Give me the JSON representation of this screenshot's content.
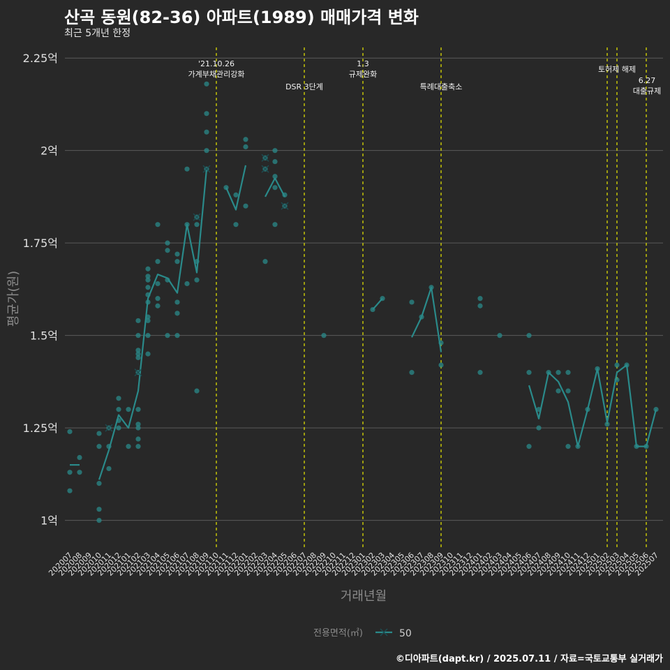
{
  "title": "산곡 동원(82-36) 아파트(1989) 매매가격 변화",
  "subtitle": "최근 5개년 한정",
  "credit": "©디아파트(dapt.kr) / 2025.07.11 / 자료=국토교통부 실거래가",
  "colors": {
    "background": "#282828",
    "series": "#2a8a8a",
    "event_line": "#e8e800",
    "grid": "#5a5a5a",
    "axis_text": "#e0e0e0",
    "axis_title": "#8a8a8a"
  },
  "chart_data": {
    "type": "line",
    "xlabel": "거래년월",
    "ylabel": "평균가(원)",
    "y_unit": "억",
    "ylim": [
      0.92,
      2.29
    ],
    "y_ticks": [
      {
        "value": 1.0,
        "label": "1억"
      },
      {
        "value": 1.25,
        "label": "1.25억"
      },
      {
        "value": 1.5,
        "label": "1.5억"
      },
      {
        "value": 1.75,
        "label": "1.75억"
      },
      {
        "value": 2.0,
        "label": "2억"
      },
      {
        "value": 2.25,
        "label": "2.25억"
      }
    ],
    "months": [
      "202007",
      "202008",
      "202009",
      "202010",
      "202011",
      "202012",
      "202101",
      "202102",
      "202103",
      "202104",
      "202105",
      "202106",
      "202107",
      "202108",
      "202109",
      "202110",
      "202111",
      "202112",
      "202201",
      "202202",
      "202203",
      "202204",
      "202205",
      "202206",
      "202207",
      "202208",
      "202209",
      "202210",
      "202211",
      "202212",
      "202301",
      "202302",
      "202303",
      "202304",
      "202305",
      "202306",
      "202307",
      "202308",
      "202309",
      "202310",
      "202311",
      "202312",
      "202401",
      "202402",
      "202403",
      "202404",
      "202405",
      "202406",
      "202407",
      "202408",
      "202409",
      "202410",
      "202411",
      "202412",
      "202501",
      "202502",
      "202503",
      "202504",
      "202505",
      "202506",
      "202507"
    ],
    "legend": {
      "title": "전용면적(㎡)",
      "entries": [
        "50"
      ],
      "position": "bottom"
    },
    "grid": true,
    "series": [
      {
        "name": "50",
        "mean_line_segments": [
          [
            [
              "202007",
              1.15
            ],
            [
              "202008",
              1.15
            ]
          ],
          [
            [
              "202010",
              1.11
            ],
            [
              "202011",
              1.19
            ],
            [
              "202012",
              1.285
            ],
            [
              "202101",
              1.25
            ],
            [
              "202102",
              1.35
            ],
            [
              "202103",
              1.6
            ],
            [
              "202104",
              1.665
            ],
            [
              "202105",
              1.655
            ],
            [
              "202106",
              1.615
            ],
            [
              "202107",
              1.8
            ],
            [
              "202108",
              1.67
            ],
            [
              "202109",
              1.95
            ]
          ],
          [
            [
              "202111",
              1.9
            ],
            [
              "202112",
              1.84
            ],
            [
              "202201",
              1.96
            ]
          ],
          [
            [
              "202203",
              1.875
            ],
            [
              "202204",
              1.925
            ],
            [
              "202205",
              1.875
            ]
          ],
          [
            [
              "202302",
              1.57
            ],
            [
              "202303",
              1.6
            ]
          ],
          [
            [
              "202306",
              1.495
            ],
            [
              "202307",
              1.55
            ],
            [
              "202308",
              1.63
            ],
            [
              "202309",
              1.455
            ]
          ],
          [
            [
              "202406",
              1.365
            ],
            [
              "202407",
              1.275
            ],
            [
              "202408",
              1.4
            ],
            [
              "202409",
              1.375
            ],
            [
              "202410",
              1.32
            ],
            [
              "202411",
              1.2
            ],
            [
              "202412",
              1.3
            ],
            [
              "202501",
              1.41
            ],
            [
              "202502",
              1.265
            ],
            [
              "202503",
              1.4
            ],
            [
              "202504",
              1.42
            ],
            [
              "202505",
              1.2
            ],
            [
              "202506",
              1.2
            ],
            [
              "202507",
              1.3
            ]
          ]
        ],
        "transactions": [
          [
            "202007",
            1.24
          ],
          [
            "202007",
            1.13
          ],
          [
            "202007",
            1.08
          ],
          [
            "202008",
            1.17
          ],
          [
            "202008",
            1.13
          ],
          [
            "202010",
            1.235
          ],
          [
            "202010",
            1.2
          ],
          [
            "202010",
            1.1
          ],
          [
            "202010",
            1.03
          ],
          [
            "202010",
            1.0
          ],
          [
            "202011",
            1.25
          ],
          [
            "202011",
            1.2
          ],
          [
            "202011",
            1.14
          ],
          [
            "202012",
            1.33
          ],
          [
            "202012",
            1.3
          ],
          [
            "202012",
            1.27
          ],
          [
            "202012",
            1.25
          ],
          [
            "202101",
            1.3
          ],
          [
            "202101",
            1.2
          ],
          [
            "202102",
            1.54
          ],
          [
            "202102",
            1.5
          ],
          [
            "202102",
            1.46
          ],
          [
            "202102",
            1.45
          ],
          [
            "202102",
            1.44
          ],
          [
            "202102",
            1.4
          ],
          [
            "202102",
            1.3
          ],
          [
            "202102",
            1.26
          ],
          [
            "202102",
            1.25
          ],
          [
            "202102",
            1.22
          ],
          [
            "202102",
            1.2
          ],
          [
            "202103",
            1.68
          ],
          [
            "202103",
            1.66
          ],
          [
            "202103",
            1.65
          ],
          [
            "202103",
            1.63
          ],
          [
            "202103",
            1.61
          ],
          [
            "202103",
            1.59
          ],
          [
            "202103",
            1.55
          ],
          [
            "202103",
            1.54
          ],
          [
            "202103",
            1.5
          ],
          [
            "202103",
            1.45
          ],
          [
            "202104",
            1.8
          ],
          [
            "202104",
            1.7
          ],
          [
            "202104",
            1.64
          ],
          [
            "202104",
            1.6
          ],
          [
            "202104",
            1.58
          ],
          [
            "202105",
            1.75
          ],
          [
            "202105",
            1.73
          ],
          [
            "202105",
            1.65
          ],
          [
            "202105",
            1.5
          ],
          [
            "202106",
            1.72
          ],
          [
            "202106",
            1.7
          ],
          [
            "202106",
            1.59
          ],
          [
            "202106",
            1.56
          ],
          [
            "202106",
            1.5
          ],
          [
            "202107",
            1.95
          ],
          [
            "202107",
            1.8
          ],
          [
            "202107",
            1.64
          ],
          [
            "202108",
            1.82
          ],
          [
            "202108",
            1.8
          ],
          [
            "202108",
            1.7
          ],
          [
            "202108",
            1.65
          ],
          [
            "202108",
            1.35
          ],
          [
            "202109",
            2.18
          ],
          [
            "202109",
            2.1
          ],
          [
            "202109",
            2.05
          ],
          [
            "202109",
            2.0
          ],
          [
            "202109",
            1.95
          ],
          [
            "202111",
            1.9
          ],
          [
            "202112",
            1.88
          ],
          [
            "202112",
            1.8
          ],
          [
            "202201",
            2.03
          ],
          [
            "202201",
            2.01
          ],
          [
            "202201",
            1.85
          ],
          [
            "202203",
            1.98
          ],
          [
            "202203",
            1.95
          ],
          [
            "202203",
            1.7
          ],
          [
            "202204",
            2.0
          ],
          [
            "202204",
            1.97
          ],
          [
            "202204",
            1.93
          ],
          [
            "202204",
            1.9
          ],
          [
            "202204",
            1.8
          ],
          [
            "202205",
            1.88
          ],
          [
            "202205",
            1.85
          ],
          [
            "202209",
            1.5
          ],
          [
            "202302",
            1.57
          ],
          [
            "202303",
            1.6
          ],
          [
            "202306",
            1.59
          ],
          [
            "202306",
            1.4
          ],
          [
            "202307",
            1.55
          ],
          [
            "202308",
            1.63
          ],
          [
            "202309",
            1.48
          ],
          [
            "202309",
            1.42
          ],
          [
            "202401",
            1.6
          ],
          [
            "202401",
            1.58
          ],
          [
            "202401",
            1.4
          ],
          [
            "202403",
            1.5
          ],
          [
            "202406",
            1.5
          ],
          [
            "202406",
            1.4
          ],
          [
            "202406",
            1.2
          ],
          [
            "202407",
            1.3
          ],
          [
            "202407",
            1.25
          ],
          [
            "202408",
            1.4
          ],
          [
            "202409",
            1.4
          ],
          [
            "202409",
            1.35
          ],
          [
            "202410",
            1.4
          ],
          [
            "202410",
            1.35
          ],
          [
            "202410",
            1.2
          ],
          [
            "202411",
            1.2
          ],
          [
            "202412",
            1.3
          ],
          [
            "202501",
            1.41
          ],
          [
            "202502",
            1.26
          ],
          [
            "202503",
            1.42
          ],
          [
            "202503",
            1.38
          ],
          [
            "202504",
            1.42
          ],
          [
            "202505",
            1.2
          ],
          [
            "202506",
            1.2
          ],
          [
            "202507",
            1.3
          ]
        ],
        "x_markers": [
          [
            "202011",
            1.25
          ],
          [
            "202102",
            1.4
          ],
          [
            "202108",
            1.82
          ],
          [
            "202109",
            1.95
          ],
          [
            "202203",
            1.98
          ],
          [
            "202203",
            1.95
          ],
          [
            "202205",
            1.85
          ]
        ]
      }
    ],
    "annotations": [
      {
        "x": "202110",
        "lines": [
          "'21.10.26",
          "가계부채관리강화"
        ],
        "level": "high"
      },
      {
        "x": "202207",
        "lines": [
          "DSR 3단계"
        ],
        "level": "low"
      },
      {
        "x": "202301",
        "lines": [
          "1.3",
          "규제완화"
        ],
        "level": "high"
      },
      {
        "x": "202309",
        "lines": [
          "특례대출축소"
        ],
        "level": "low"
      },
      {
        "x": "202502",
        "lines": [],
        "level": "none"
      },
      {
        "x": "202503",
        "lines": [
          "토허제 해제"
        ],
        "level": "mid"
      },
      {
        "x": "202506",
        "lines": [
          "6.27",
          "대출규제"
        ],
        "level": "right"
      }
    ]
  }
}
